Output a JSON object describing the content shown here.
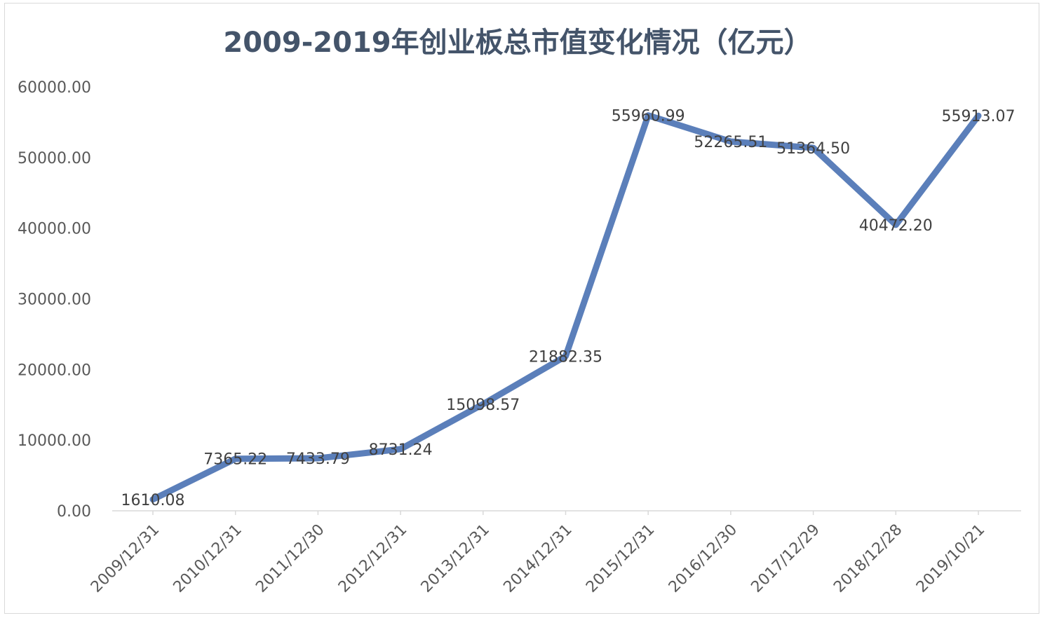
{
  "chart_data": {
    "type": "line",
    "title": "2009-2019年创业板总市值变化情况（亿元）",
    "xlabel": "",
    "ylabel": "",
    "categories": [
      "2009/12/31",
      "2010/12/31",
      "2011/12/30",
      "2012/12/31",
      "2013/12/31",
      "2014/12/31",
      "2015/12/31",
      "2016/12/30",
      "2017/12/29",
      "2018/12/28",
      "2019/10/21"
    ],
    "values": [
      1610.08,
      7365.22,
      7433.79,
      8731.24,
      15098.57,
      21882.35,
      55960.99,
      52265.51,
      51364.5,
      40472.2,
      55913.07
    ],
    "data_labels": [
      "1610.08",
      "7365.22",
      "7433.79",
      "8731.24",
      "15098.57",
      "21882.35",
      "55960.99",
      "52265.51",
      "51364.50",
      "40472.20",
      "55913.07"
    ],
    "y_ticks": [
      "0.00",
      "10000.00",
      "20000.00",
      "30000.00",
      "40000.00",
      "50000.00",
      "60000.00"
    ],
    "ylim": [
      0,
      60000
    ],
    "grid": false,
    "legend": "none",
    "line_color": "#5b7fba"
  }
}
